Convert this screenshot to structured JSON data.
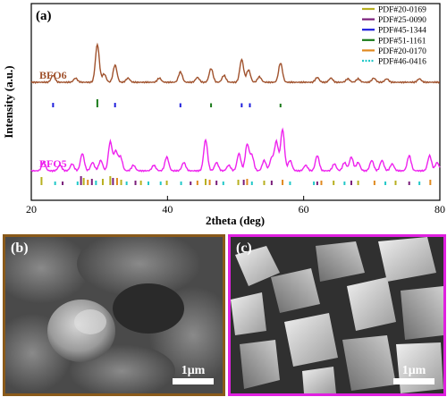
{
  "chart_data": {
    "type": "line",
    "panel_label": "(a)",
    "xlabel": "2theta (deg)",
    "ylabel": "Intensity (a.u.)",
    "xlim": [
      20,
      80
    ],
    "xticks": [
      "20",
      "40",
      "60",
      "80"
    ],
    "xtick_values": [
      20,
      40,
      60,
      80
    ],
    "series": [
      {
        "name": "BFO6",
        "color": "#a0522d",
        "baseline": 0.6,
        "peaks": [
          [
            23.2,
            0.1
          ],
          [
            26.5,
            0.06
          ],
          [
            29.7,
            0.55
          ],
          [
            30.7,
            0.12
          ],
          [
            32.3,
            0.25
          ],
          [
            34.2,
            0.06
          ],
          [
            38.8,
            0.06
          ],
          [
            41.9,
            0.15
          ],
          [
            44.4,
            0.07
          ],
          [
            46.4,
            0.2
          ],
          [
            48.3,
            0.1
          ],
          [
            50.9,
            0.33
          ],
          [
            51.9,
            0.18
          ],
          [
            53.5,
            0.08
          ],
          [
            56.6,
            0.28
          ],
          [
            62.0,
            0.07
          ],
          [
            64.0,
            0.06
          ],
          [
            66.5,
            0.05
          ],
          [
            68.0,
            0.05
          ],
          [
            70.3,
            0.06
          ],
          [
            72.2,
            0.05
          ],
          [
            77.0,
            0.05
          ]
        ]
      },
      {
        "name": "BFO5",
        "color": "#ee22ee",
        "baseline": 0.15,
        "peaks": [
          [
            21.8,
            0.12
          ],
          [
            24.2,
            0.08
          ],
          [
            26.0,
            0.1
          ],
          [
            27.5,
            0.25
          ],
          [
            29.0,
            0.12
          ],
          [
            30.2,
            0.15
          ],
          [
            31.6,
            0.42
          ],
          [
            32.4,
            0.28
          ],
          [
            33.1,
            0.2
          ],
          [
            35.0,
            0.08
          ],
          [
            38.0,
            0.08
          ],
          [
            39.9,
            0.2
          ],
          [
            42.4,
            0.12
          ],
          [
            45.6,
            0.45
          ],
          [
            47.2,
            0.12
          ],
          [
            49.0,
            0.08
          ],
          [
            50.5,
            0.25
          ],
          [
            51.7,
            0.38
          ],
          [
            52.4,
            0.22
          ],
          [
            54.2,
            0.15
          ],
          [
            55.3,
            0.18
          ],
          [
            56.0,
            0.42
          ],
          [
            56.9,
            0.6
          ],
          [
            58.0,
            0.15
          ],
          [
            60.3,
            0.08
          ],
          [
            62.0,
            0.22
          ],
          [
            64.5,
            0.1
          ],
          [
            66.0,
            0.12
          ],
          [
            67.0,
            0.2
          ],
          [
            68.0,
            0.12
          ],
          [
            70.0,
            0.15
          ],
          [
            71.5,
            0.15
          ],
          [
            73.0,
            0.1
          ],
          [
            75.5,
            0.22
          ],
          [
            78.5,
            0.22
          ],
          [
            79.6,
            0.12
          ]
        ]
      }
    ],
    "legend": {
      "placement": "top-right",
      "entries": [
        {
          "name": "PDF#20-0169",
          "color": "#b8b020",
          "style": "solid"
        },
        {
          "name": "PDF#25-0090",
          "color": "#7a1e7a",
          "style": "solid"
        },
        {
          "name": "PDF#45-1344",
          "color": "#1f1fdc",
          "style": "solid"
        },
        {
          "name": "PDF#51-1161",
          "color": "#1a7a1a",
          "style": "solid"
        },
        {
          "name": "PDF#20-0170",
          "color": "#e08a20",
          "style": "solid"
        },
        {
          "name": "PDF#46-0416",
          "color": "#22c8c8",
          "style": "dashed"
        }
      ]
    },
    "reference_ticks_bfo6": [
      {
        "x": 23.2,
        "color": "#1f1fdc",
        "h": 0.55
      },
      {
        "x": 29.7,
        "color": "#1a7a1a",
        "h": 1.0
      },
      {
        "x": 32.3,
        "color": "#1f1fdc",
        "h": 0.55
      },
      {
        "x": 41.9,
        "color": "#1f1fdc",
        "h": 0.5
      },
      {
        "x": 46.4,
        "color": "#1a7a1a",
        "h": 0.5
      },
      {
        "x": 50.9,
        "color": "#1f1fdc",
        "h": 0.5
      },
      {
        "x": 52.1,
        "color": "#1f1fdc",
        "h": 0.5
      },
      {
        "x": 56.6,
        "color": "#1a7a1a",
        "h": 0.45
      }
    ],
    "reference_ticks_bfo5": [
      {
        "x": 21.5,
        "color": "#b8b020",
        "h": 0.9
      },
      {
        "x": 23.5,
        "color": "#22c8c8",
        "h": 0.4
      },
      {
        "x": 24.6,
        "color": "#7a1e7a",
        "h": 0.4
      },
      {
        "x": 26.8,
        "color": "#22c8c8",
        "h": 0.4
      },
      {
        "x": 27.3,
        "color": "#7a1e7a",
        "h": 1.0
      },
      {
        "x": 27.7,
        "color": "#b8b020",
        "h": 0.8
      },
      {
        "x": 28.3,
        "color": "#e08a20",
        "h": 0.6
      },
      {
        "x": 28.9,
        "color": "#7a1e7a",
        "h": 0.7
      },
      {
        "x": 29.5,
        "color": "#22c8c8",
        "h": 0.5
      },
      {
        "x": 30.5,
        "color": "#b8b020",
        "h": 0.7
      },
      {
        "x": 31.6,
        "color": "#b8b020",
        "h": 1.0
      },
      {
        "x": 32.0,
        "color": "#7a1e7a",
        "h": 0.8
      },
      {
        "x": 32.6,
        "color": "#e08a20",
        "h": 0.8
      },
      {
        "x": 33.2,
        "color": "#b8b020",
        "h": 0.6
      },
      {
        "x": 34.0,
        "color": "#22c8c8",
        "h": 0.4
      },
      {
        "x": 35.3,
        "color": "#7a1e7a",
        "h": 0.5
      },
      {
        "x": 36.1,
        "color": "#b8b020",
        "h": 0.5
      },
      {
        "x": 37.2,
        "color": "#22c8c8",
        "h": 0.4
      },
      {
        "x": 39.0,
        "color": "#22c8c8",
        "h": 0.4
      },
      {
        "x": 39.9,
        "color": "#b8b020",
        "h": 0.5
      },
      {
        "x": 42.0,
        "color": "#22c8c8",
        "h": 0.4
      },
      {
        "x": 43.4,
        "color": "#7a1e7a",
        "h": 0.4
      },
      {
        "x": 44.4,
        "color": "#e08a20",
        "h": 0.5
      },
      {
        "x": 45.6,
        "color": "#b8b020",
        "h": 0.7
      },
      {
        "x": 46.2,
        "color": "#e08a20",
        "h": 0.6
      },
      {
        "x": 47.2,
        "color": "#7a1e7a",
        "h": 0.5
      },
      {
        "x": 48.2,
        "color": "#22c8c8",
        "h": 0.4
      },
      {
        "x": 50.4,
        "color": "#b8b020",
        "h": 0.6
      },
      {
        "x": 51.2,
        "color": "#7a1e7a",
        "h": 0.6
      },
      {
        "x": 51.7,
        "color": "#e08a20",
        "h": 0.7
      },
      {
        "x": 52.4,
        "color": "#22c8c8",
        "h": 0.4
      },
      {
        "x": 54.2,
        "color": "#b8b020",
        "h": 0.5
      },
      {
        "x": 55.3,
        "color": "#7a1e7a",
        "h": 0.5
      },
      {
        "x": 56.9,
        "color": "#e08a20",
        "h": 0.6
      },
      {
        "x": 58.0,
        "color": "#22c8c8",
        "h": 0.4
      },
      {
        "x": 61.5,
        "color": "#22c8c8",
        "h": 0.4
      },
      {
        "x": 62.0,
        "color": "#7a1e7a",
        "h": 0.4
      },
      {
        "x": 62.6,
        "color": "#e08a20",
        "h": 0.5
      },
      {
        "x": 64.4,
        "color": "#b8b020",
        "h": 0.5
      },
      {
        "x": 66.0,
        "color": "#22c8c8",
        "h": 0.4
      },
      {
        "x": 67.0,
        "color": "#7a1e7a",
        "h": 0.5
      },
      {
        "x": 68.0,
        "color": "#b8b020",
        "h": 0.5
      },
      {
        "x": 70.4,
        "color": "#e08a20",
        "h": 0.5
      },
      {
        "x": 72.0,
        "color": "#22c8c8",
        "h": 0.4
      },
      {
        "x": 73.5,
        "color": "#b8b020",
        "h": 0.5
      },
      {
        "x": 75.5,
        "color": "#7a1e7a",
        "h": 0.4
      },
      {
        "x": 77.0,
        "color": "#22c8c8",
        "h": 0.4
      },
      {
        "x": 78.6,
        "color": "#e08a20",
        "h": 0.6
      }
    ]
  },
  "sem_b": {
    "label": "(b)",
    "scale_text": "1μm",
    "frame_color": "#8a5a1a"
  },
  "sem_c": {
    "label": "(c)",
    "scale_text": "1μm",
    "frame_color": "#e020e0"
  }
}
